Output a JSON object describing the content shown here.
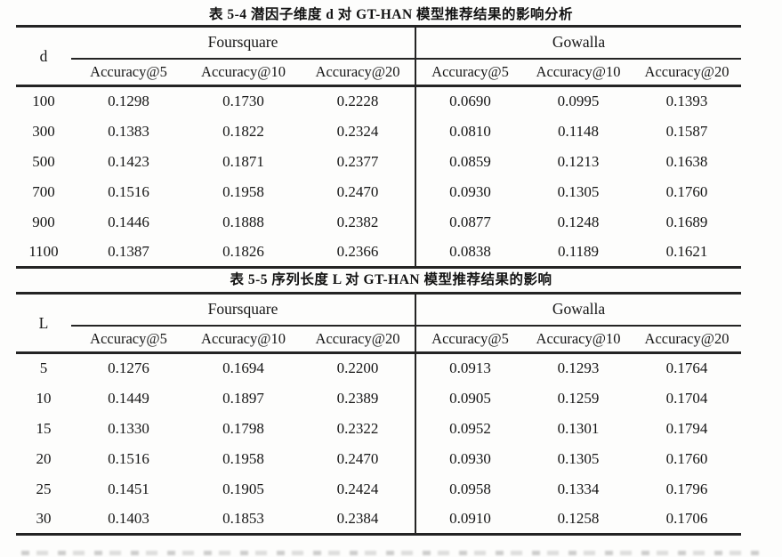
{
  "page": {
    "background": "#fdfdfc",
    "ink_color": "#161616",
    "line_color": "#242424"
  },
  "tables": [
    {
      "caption": "表 5-4 潜因子维度 d 对 GT-HAN 模型推荐结果的影响分析",
      "key_header": "d",
      "groups": [
        "Foursquare",
        "Gowalla"
      ],
      "columns": [
        "Accuracy@5",
        "Accuracy@10",
        "Accuracy@20",
        "Accuracy@5",
        "Accuracy@10",
        "Accuracy@20"
      ],
      "rows": [
        [
          "100",
          "0.1298",
          "0.1730",
          "0.2228",
          "0.0690",
          "0.0995",
          "0.1393"
        ],
        [
          "300",
          "0.1383",
          "0.1822",
          "0.2324",
          "0.0810",
          "0.1148",
          "0.1587"
        ],
        [
          "500",
          "0.1423",
          "0.1871",
          "0.2377",
          "0.0859",
          "0.1213",
          "0.1638"
        ],
        [
          "700",
          "0.1516",
          "0.1958",
          "0.2470",
          "0.0930",
          "0.1305",
          "0.1760"
        ],
        [
          "900",
          "0.1446",
          "0.1888",
          "0.2382",
          "0.0877",
          "0.1248",
          "0.1689"
        ],
        [
          "1100",
          "0.1387",
          "0.1826",
          "0.2366",
          "0.0838",
          "0.1189",
          "0.1621"
        ]
      ]
    },
    {
      "caption": "表 5-5 序列长度 L 对 GT-HAN 模型推荐结果的影响",
      "key_header": "L",
      "groups": [
        "Foursquare",
        "Gowalla"
      ],
      "columns": [
        "Accuracy@5",
        "Accuracy@10",
        "Accuracy@20",
        "Accuracy@5",
        "Accuracy@10",
        "Accuracy@20"
      ],
      "rows": [
        [
          "5",
          "0.1276",
          "0.1694",
          "0.2200",
          "0.0913",
          "0.1293",
          "0.1764"
        ],
        [
          "10",
          "0.1449",
          "0.1897",
          "0.2389",
          "0.0905",
          "0.1259",
          "0.1704"
        ],
        [
          "15",
          "0.1330",
          "0.1798",
          "0.2322",
          "0.0952",
          "0.1301",
          "0.1794"
        ],
        [
          "20",
          "0.1516",
          "0.1958",
          "0.2470",
          "0.0930",
          "0.1305",
          "0.1760"
        ],
        [
          "25",
          "0.1451",
          "0.1905",
          "0.2424",
          "0.0958",
          "0.1334",
          "0.1796"
        ],
        [
          "30",
          "0.1403",
          "0.1853",
          "0.2384",
          "0.0910",
          "0.1258",
          "0.1706"
        ]
      ]
    }
  ]
}
